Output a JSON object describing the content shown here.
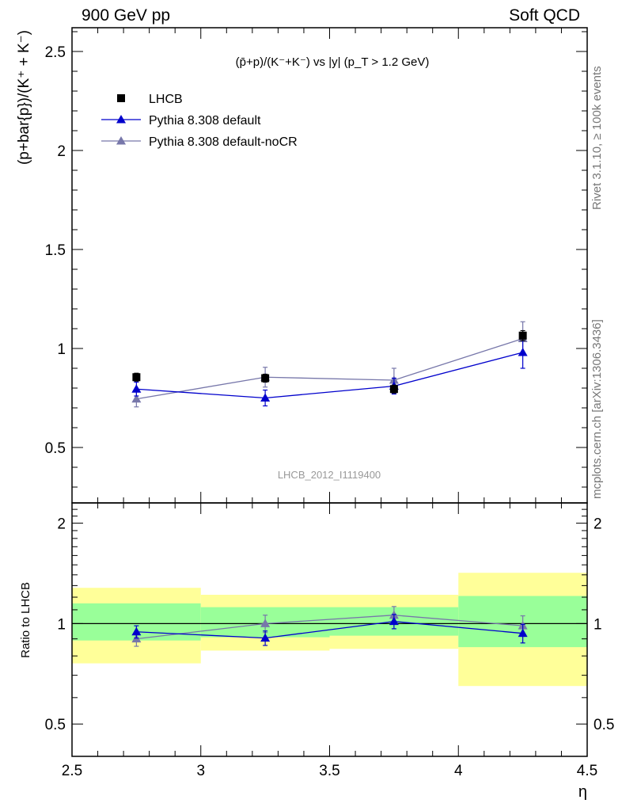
{
  "header": {
    "left_label": "900 GeV pp",
    "right_label": "Soft QCD"
  },
  "side_notes": {
    "rivet": "Rivet 3.1.10, ≥ 100k events",
    "mcplots": "mcplots.cern.ch [arXiv:1306.3436]"
  },
  "colors": {
    "data": "#000000",
    "default": "#0000cc",
    "noCR": "#7777aa",
    "band_inner": "#99ff99",
    "band_outer": "#ffff99"
  },
  "chart_data": [
    {
      "type": "scatter",
      "panel": "main",
      "title": "(p̄+p)/(K⁻+K⁻) vs |y| (p_T > 1.2 GeV)",
      "ylabel": "(p+bar{p})/(K⁺ + K⁻)",
      "watermark": "LHCB_2012_I1119400",
      "xlim": [
        2.5,
        4.5
      ],
      "ylim": [
        0.22,
        2.62
      ],
      "yticks": [
        0.5,
        1,
        1.5,
        2,
        2.5
      ],
      "ytick_labels": [
        "0.5",
        "1",
        "1.5",
        "2",
        "2.5"
      ],
      "legend_position": "top-left",
      "x": [
        2.75,
        3.25,
        3.75,
        4.25
      ],
      "series": [
        {
          "name": "LHCB",
          "key": "data",
          "marker": "square",
          "values": [
            0.855,
            0.85,
            0.795,
            1.065
          ],
          "errors": [
            0.02,
            0.02,
            0.02,
            0.025
          ]
        },
        {
          "name": "Pythia 8.308 default",
          "key": "default",
          "marker": "triangle",
          "values": [
            0.795,
            0.75,
            0.81,
            0.98
          ],
          "errors": [
            0.035,
            0.04,
            0.04,
            0.08
          ]
        },
        {
          "name": "Pythia 8.308 default-noCR",
          "key": "noCR",
          "marker": "triangle",
          "values": [
            0.745,
            0.855,
            0.84,
            1.05
          ],
          "errors": [
            0.04,
            0.05,
            0.06,
            0.085
          ]
        }
      ]
    },
    {
      "type": "scatter",
      "panel": "ratio",
      "ylabel": "Ratio to LHCB",
      "xlabel": "η",
      "xlim": [
        2.5,
        4.5
      ],
      "ylim": [
        0.4,
        2.3
      ],
      "xticks": [
        2.5,
        3,
        3.5,
        4,
        4.5
      ],
      "xtick_labels": [
        "2.5",
        "3",
        "3.5",
        "4",
        "4.5"
      ],
      "yticks": [
        0.5,
        1,
        2
      ],
      "ytick_labels": [
        "0.5",
        "1",
        "2"
      ],
      "bands": [
        {
          "x0": 2.5,
          "x1": 3.0,
          "inner": [
            0.89,
            1.15
          ],
          "outer": [
            0.76,
            1.28
          ]
        },
        {
          "x0": 3.0,
          "x1": 3.5,
          "inner": [
            0.91,
            1.12
          ],
          "outer": [
            0.83,
            1.22
          ]
        },
        {
          "x0": 3.5,
          "x1": 4.0,
          "inner": [
            0.92,
            1.12
          ],
          "outer": [
            0.84,
            1.22
          ]
        },
        {
          "x0": 4.0,
          "x1": 4.5,
          "inner": [
            0.85,
            1.21
          ],
          "outer": [
            0.65,
            1.42
          ]
        }
      ],
      "x": [
        2.75,
        3.25,
        3.75,
        4.25
      ],
      "series": [
        {
          "name": "Pythia 8.308 default",
          "key": "default",
          "marker": "triangle",
          "values": [
            0.945,
            0.905,
            1.015,
            0.935
          ],
          "errors": [
            0.04,
            0.045,
            0.05,
            0.06
          ]
        },
        {
          "name": "Pythia 8.308 default-noCR",
          "key": "noCR",
          "marker": "triangle",
          "values": [
            0.9,
            1.0,
            1.06,
            0.985
          ],
          "errors": [
            0.045,
            0.06,
            0.065,
            0.07
          ]
        }
      ]
    }
  ]
}
